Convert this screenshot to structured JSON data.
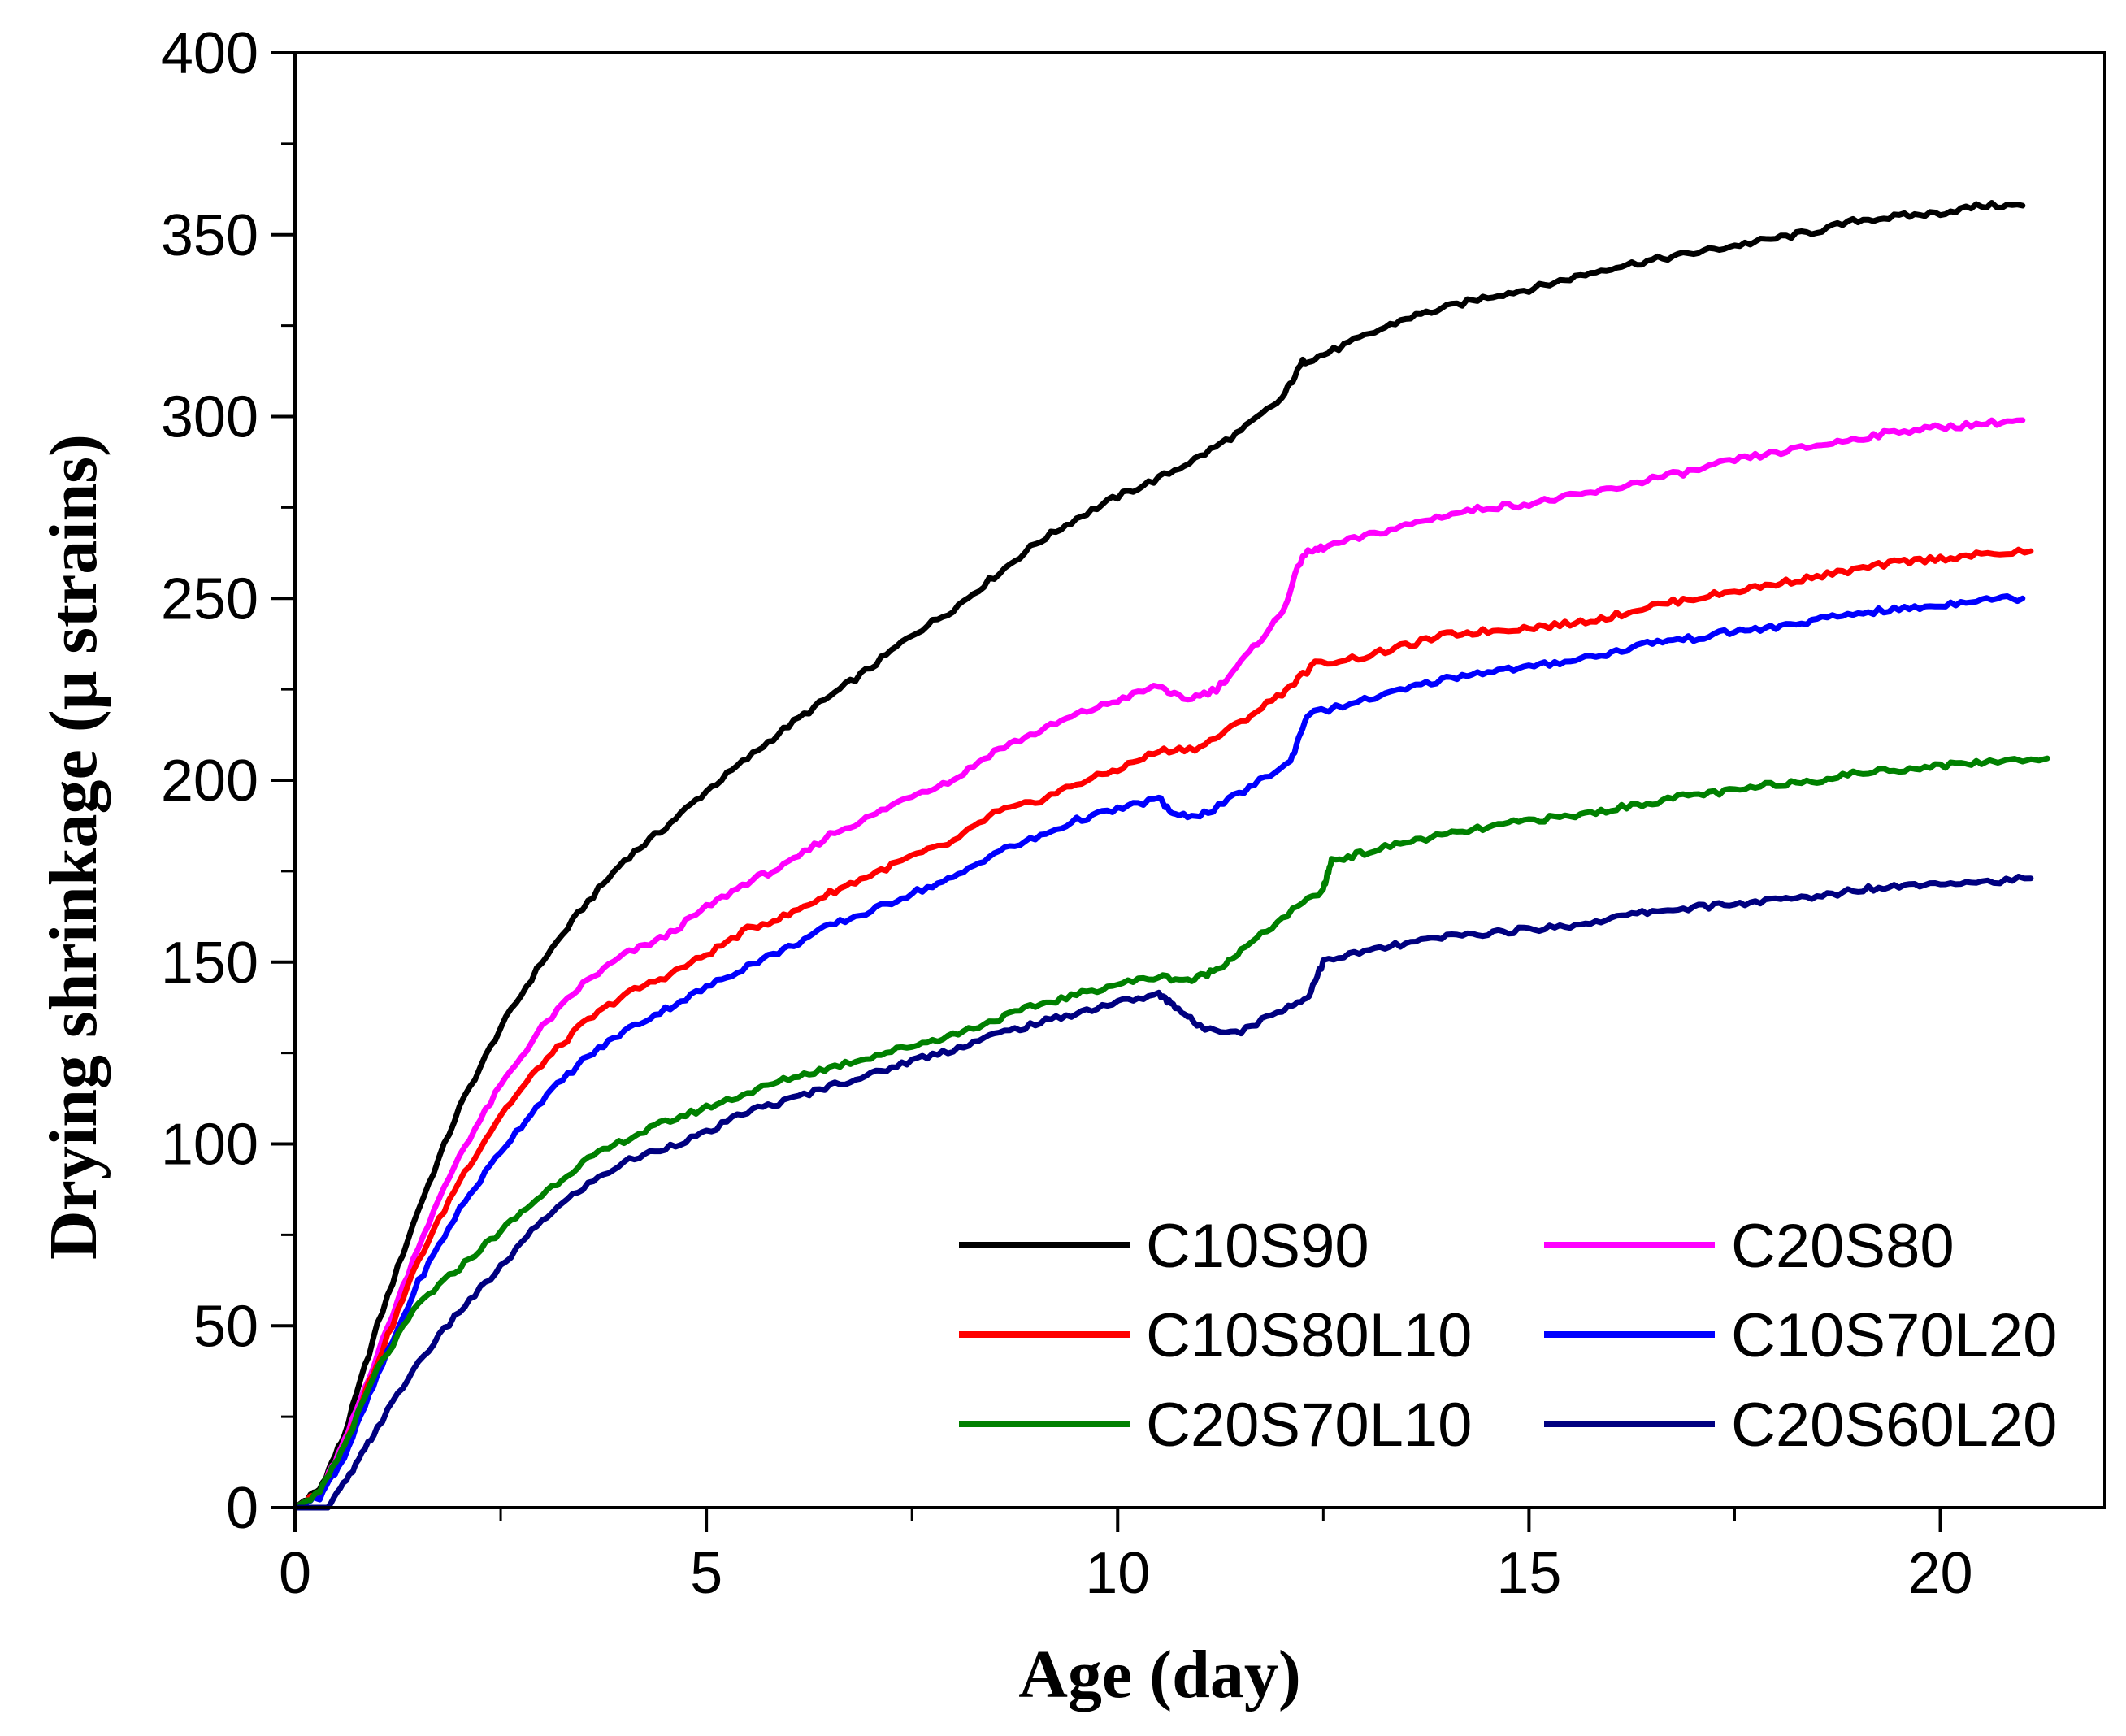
{
  "chart_data": {
    "type": "line",
    "title": "",
    "xlabel": "Age (day)",
    "ylabel": "Drying shrinkage (μ strains)",
    "xlim": [
      0,
      22
    ],
    "ylim": [
      0,
      400
    ],
    "xticks": [
      0,
      5,
      10,
      15,
      20
    ],
    "yticks": [
      0,
      50,
      100,
      150,
      200,
      250,
      300,
      350,
      400
    ],
    "grid": false,
    "legend_position": "bottom-right",
    "series": [
      {
        "name": "C10S90",
        "color": "#000000",
        "points": [
          [
            0,
            0
          ],
          [
            0.3,
            5
          ],
          [
            0.6,
            20
          ],
          [
            1,
            50
          ],
          [
            1.5,
            82
          ],
          [
            2,
            110
          ],
          [
            2.5,
            132
          ],
          [
            3,
            150
          ],
          [
            3.5,
            165
          ],
          [
            4,
            178
          ],
          [
            4.5,
            187
          ],
          [
            5,
            197
          ],
          [
            5.5,
            206
          ],
          [
            6,
            215
          ],
          [
            6.5,
            223
          ],
          [
            7,
            231
          ],
          [
            7.5,
            240
          ],
          [
            8,
            247
          ],
          [
            8.5,
            256
          ],
          [
            9,
            265
          ],
          [
            9.5,
            272
          ],
          [
            10,
            278
          ],
          [
            10.5,
            283
          ],
          [
            11,
            289
          ],
          [
            11.5,
            296
          ],
          [
            12,
            305
          ],
          [
            12.25,
            315
          ],
          [
            12.5,
            317
          ],
          [
            13,
            322
          ],
          [
            13.5,
            327
          ],
          [
            14,
            330
          ],
          [
            14.5,
            333
          ],
          [
            15,
            335
          ],
          [
            15.5,
            338
          ],
          [
            16,
            341
          ],
          [
            16.5,
            343
          ],
          [
            17,
            345
          ],
          [
            17.5,
            347
          ],
          [
            18,
            349
          ],
          [
            18.5,
            351
          ],
          [
            19,
            354
          ],
          [
            19.5,
            355
          ],
          [
            20,
            356
          ],
          [
            20.5,
            358
          ],
          [
            21,
            358
          ]
        ]
      },
      {
        "name": "C20S80",
        "color": "#ff00ff",
        "points": [
          [
            0,
            0
          ],
          [
            0.3,
            4
          ],
          [
            0.6,
            18
          ],
          [
            1,
            42
          ],
          [
            1.5,
            72
          ],
          [
            2,
            97
          ],
          [
            2.5,
            116
          ],
          [
            3,
            132
          ],
          [
            3.5,
            144
          ],
          [
            4,
            152
          ],
          [
            4.5,
            157
          ],
          [
            5,
            165
          ],
          [
            5.5,
            172
          ],
          [
            6,
            177
          ],
          [
            6.5,
            185
          ],
          [
            7,
            190
          ],
          [
            7.5,
            196
          ],
          [
            8,
            200
          ],
          [
            8.5,
            208
          ],
          [
            9,
            213
          ],
          [
            9.5,
            218
          ],
          [
            10,
            222
          ],
          [
            10.5,
            226
          ],
          [
            10.8,
            222
          ],
          [
            11.2,
            225
          ],
          [
            11.6,
            235
          ],
          [
            12,
            246
          ],
          [
            12.25,
            262
          ],
          [
            12.5,
            264
          ],
          [
            13,
            267
          ],
          [
            13.5,
            270
          ],
          [
            14,
            273
          ],
          [
            14.5,
            275
          ],
          [
            15,
            276
          ],
          [
            15.5,
            278
          ],
          [
            16,
            280
          ],
          [
            16.5,
            283
          ],
          [
            17,
            285
          ],
          [
            17.5,
            288
          ],
          [
            18,
            290
          ],
          [
            18.5,
            292
          ],
          [
            19,
            294
          ],
          [
            19.5,
            296
          ],
          [
            20,
            297
          ],
          [
            20.5,
            298
          ],
          [
            21,
            299
          ]
        ]
      },
      {
        "name": "C10S80L10",
        "color": "#ff0000",
        "points": [
          [
            0,
            0
          ],
          [
            0.3,
            4
          ],
          [
            0.6,
            17
          ],
          [
            1,
            40
          ],
          [
            1.5,
            68
          ],
          [
            2,
            90
          ],
          [
            2.5,
            108
          ],
          [
            3,
            122
          ],
          [
            3.5,
            133
          ],
          [
            4,
            141
          ],
          [
            4.5,
            146
          ],
          [
            5,
            152
          ],
          [
            5.5,
            159
          ],
          [
            6,
            163
          ],
          [
            6.5,
            169
          ],
          [
            7,
            174
          ],
          [
            7.5,
            179
          ],
          [
            8,
            183
          ],
          [
            8.5,
            191
          ],
          [
            9,
            194
          ],
          [
            9.5,
            199
          ],
          [
            10,
            203
          ],
          [
            10.5,
            208
          ],
          [
            11,
            209
          ],
          [
            11.5,
            216
          ],
          [
            12,
            224
          ],
          [
            12.4,
            232
          ],
          [
            13,
            234
          ],
          [
            13.5,
            237
          ],
          [
            14,
            240
          ],
          [
            14.5,
            241
          ],
          [
            15,
            242
          ],
          [
            15.5,
            243
          ],
          [
            16,
            245
          ],
          [
            16.5,
            248
          ],
          [
            17,
            250
          ],
          [
            17.5,
            252
          ],
          [
            18,
            254
          ],
          [
            18.5,
            256
          ],
          [
            19,
            258
          ],
          [
            19.5,
            260
          ],
          [
            20,
            261
          ],
          [
            20.5,
            262
          ],
          [
            21.1,
            263
          ]
        ]
      },
      {
        "name": "C10S70L20",
        "color": "#0000ff",
        "points": [
          [
            0,
            0
          ],
          [
            0.3,
            3
          ],
          [
            0.6,
            14
          ],
          [
            1,
            36
          ],
          [
            1.5,
            62
          ],
          [
            2,
            82
          ],
          [
            2.5,
            98
          ],
          [
            3,
            112
          ],
          [
            3.5,
            123
          ],
          [
            4,
            131
          ],
          [
            4.5,
            137
          ],
          [
            5,
            143
          ],
          [
            5.5,
            149
          ],
          [
            6,
            154
          ],
          [
            6.5,
            160
          ],
          [
            7,
            164
          ],
          [
            7.5,
            169
          ],
          [
            8,
            173
          ],
          [
            8.5,
            180
          ],
          [
            9,
            184
          ],
          [
            9.5,
            189
          ],
          [
            10,
            192
          ],
          [
            10.5,
            195
          ],
          [
            10.7,
            190
          ],
          [
            11.1,
            191
          ],
          [
            11.6,
            198
          ],
          [
            12.1,
            205
          ],
          [
            12.3,
            218
          ],
          [
            13,
            222
          ],
          [
            13.5,
            225
          ],
          [
            14,
            228
          ],
          [
            14.5,
            230
          ],
          [
            15,
            231
          ],
          [
            15.5,
            233
          ],
          [
            16,
            235
          ],
          [
            16.5,
            238
          ],
          [
            17,
            239
          ],
          [
            17.5,
            241
          ],
          [
            18,
            242
          ],
          [
            18.5,
            244
          ],
          [
            19,
            246
          ],
          [
            19.5,
            247
          ],
          [
            20,
            248
          ],
          [
            20.5,
            250
          ],
          [
            21,
            250
          ]
        ]
      },
      {
        "name": "C20S70L10",
        "color": "#008000",
        "points": [
          [
            0,
            0
          ],
          [
            0.3,
            4
          ],
          [
            0.6,
            17
          ],
          [
            1,
            38
          ],
          [
            1.5,
            56
          ],
          [
            2,
            66
          ],
          [
            2.5,
            76
          ],
          [
            3,
            86
          ],
          [
            3.5,
            95
          ],
          [
            4,
            101
          ],
          [
            4.5,
            106
          ],
          [
            5,
            110
          ],
          [
            5.5,
            114
          ],
          [
            6,
            118
          ],
          [
            6.5,
            121
          ],
          [
            7,
            124
          ],
          [
            7.5,
            127
          ],
          [
            8,
            130
          ],
          [
            8.5,
            134
          ],
          [
            9,
            138
          ],
          [
            9.5,
            141
          ],
          [
            10,
            144
          ],
          [
            10.5,
            146
          ],
          [
            10.9,
            145
          ],
          [
            11.2,
            148
          ],
          [
            11.5,
            153
          ],
          [
            12,
            162
          ],
          [
            12.5,
            170
          ],
          [
            12.6,
            178
          ],
          [
            13,
            180
          ],
          [
            13.5,
            183
          ],
          [
            14,
            185
          ],
          [
            14.5,
            187
          ],
          [
            15,
            189
          ],
          [
            15.5,
            190
          ],
          [
            16,
            192
          ],
          [
            16.5,
            194
          ],
          [
            17,
            196
          ],
          [
            17.5,
            197
          ],
          [
            18,
            199
          ],
          [
            18.5,
            200
          ],
          [
            19,
            202
          ],
          [
            19.5,
            203
          ],
          [
            20,
            204
          ],
          [
            20.5,
            205
          ],
          [
            21.3,
            206
          ]
        ]
      },
      {
        "name": "C20S60L20",
        "color": "#000080",
        "points": [
          [
            0,
            0
          ],
          [
            0.4,
            0
          ],
          [
            0.7,
            10
          ],
          [
            1,
            22
          ],
          [
            1.5,
            40
          ],
          [
            2,
            54
          ],
          [
            2.5,
            66
          ],
          [
            3,
            79
          ],
          [
            3.5,
            88
          ],
          [
            4,
            95
          ],
          [
            4.5,
            99
          ],
          [
            5,
            103
          ],
          [
            5.5,
            109
          ],
          [
            6,
            112
          ],
          [
            6.5,
            116
          ],
          [
            7,
            119
          ],
          [
            7.5,
            123
          ],
          [
            8,
            126
          ],
          [
            8.5,
            130
          ],
          [
            9,
            133
          ],
          [
            9.5,
            136
          ],
          [
            10,
            139
          ],
          [
            10.5,
            141
          ],
          [
            10.7,
            138
          ],
          [
            11,
            132
          ],
          [
            11.5,
            131
          ],
          [
            12,
            137
          ],
          [
            12.3,
            140
          ],
          [
            12.5,
            150
          ],
          [
            13,
            153
          ],
          [
            13.5,
            155
          ],
          [
            14,
            157
          ],
          [
            14.5,
            158
          ],
          [
            15,
            159
          ],
          [
            15.5,
            160
          ],
          [
            16,
            162
          ],
          [
            16.5,
            164
          ],
          [
            17,
            165
          ],
          [
            17.5,
            166
          ],
          [
            18,
            167
          ],
          [
            18.5,
            168
          ],
          [
            19,
            170
          ],
          [
            19.5,
            171
          ],
          [
            20,
            172
          ],
          [
            20.5,
            172
          ],
          [
            21.1,
            173
          ]
        ]
      }
    ]
  }
}
